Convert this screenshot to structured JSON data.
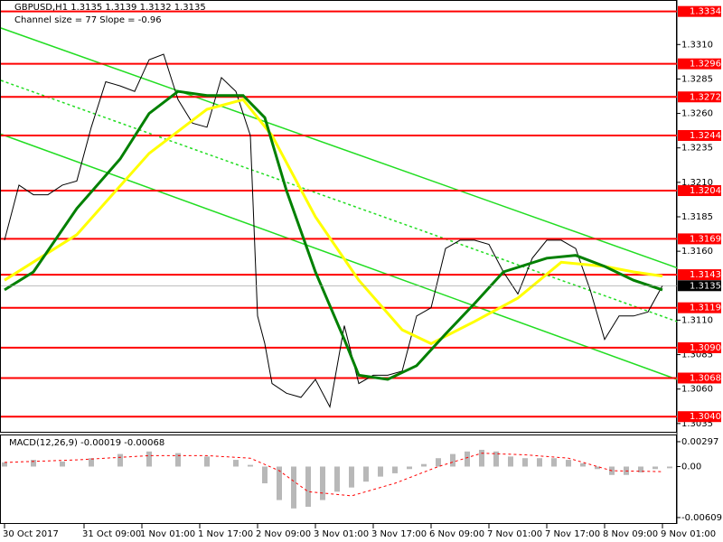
{
  "chart_data": [
    {
      "type": "line",
      "title": "GBPUSD,H1  1.3135 1.3139 1.3132 1.3135",
      "subtitle": "Channel size = 77 Slope = -0.96",
      "xlim": [
        -1,
        186
      ],
      "ylim": [
        1.3029,
        1.3341
      ],
      "yticks": [
        {
          "value": 1.331,
          "label": "1.3310"
        },
        1.3285,
        {
          "value": 1.326,
          "label": "1.3260"
        },
        1.3235,
        {
          "value": 1.321,
          "label": "1.3210"
        },
        1.3185,
        {
          "value": 1.316,
          "label": "1.3160"
        },
        {
          "value": 1.311,
          "label": "1.3110"
        },
        1.3085,
        {
          "value": 1.306,
          "label": "1.3060"
        },
        1.3035
      ],
      "series": [
        {
          "color": "#000000",
          "x": [
            0,
            4,
            8,
            12,
            16,
            20,
            24,
            28,
            32,
            36,
            40,
            44,
            48,
            52,
            56,
            60,
            64,
            68,
            70,
            72,
            74,
            78,
            82,
            86,
            90,
            94,
            98,
            102,
            106,
            110,
            114,
            118,
            122,
            126,
            130,
            134,
            138,
            142,
            146,
            150,
            154,
            158,
            162,
            166,
            170,
            174,
            178,
            182
          ],
          "values": [
            1.3168,
            1.3208,
            1.3201,
            1.3201,
            1.3208,
            1.3211,
            1.325,
            1.3283,
            1.328,
            1.3276,
            1.3299,
            1.3303,
            1.327,
            1.3253,
            1.325,
            1.3286,
            1.3276,
            1.3244,
            1.3113,
            1.3093,
            1.3064,
            1.3057,
            1.3054,
            1.3067,
            1.3047,
            1.3106,
            1.3064,
            1.307,
            1.307,
            1.3073,
            1.3113,
            1.3119,
            1.3162,
            1.3168,
            1.3168,
            1.3165,
            1.3145,
            1.3129,
            1.3155,
            1.3168,
            1.3168,
            1.3162,
            1.3132,
            1.3096,
            1.3113,
            1.3113,
            1.3116,
            1.3135
          ]
        },
        {
          "color": "#ffff00",
          "x": [
            0,
            20,
            40,
            56,
            66,
            74,
            86,
            98,
            110,
            118,
            130,
            142,
            154,
            166,
            174,
            182
          ],
          "values": [
            1.3139,
            1.3172,
            1.3231,
            1.3263,
            1.327,
            1.3244,
            1.3185,
            1.3139,
            1.3103,
            1.3093,
            1.3109,
            1.3126,
            1.3152,
            1.3149,
            1.3145,
            1.3142
          ]
        },
        {
          "color": "#008000",
          "x": [
            0,
            8,
            20,
            32,
            40,
            48,
            56,
            66,
            72,
            78,
            86,
            94,
            98,
            106,
            114,
            122,
            130,
            138,
            150,
            158,
            166,
            174,
            182
          ],
          "values": [
            1.3132,
            1.3145,
            1.3191,
            1.3227,
            1.326,
            1.3276,
            1.3273,
            1.3273,
            1.3257,
            1.3204,
            1.3145,
            1.3096,
            1.307,
            1.3067,
            1.3077,
            1.31,
            1.3122,
            1.3145,
            1.3155,
            1.3157,
            1.3149,
            1.3139,
            1.3132
          ]
        }
      ],
      "trend_lines": [
        {
          "color": "#22dd22",
          "dash": false,
          "x": [
            -1,
            186
          ],
          "values": [
            1.3322,
            1.3148
          ]
        },
        {
          "color": "#22dd22",
          "dash": true,
          "x": [
            -1,
            186
          ],
          "values": [
            1.3284,
            1.3109
          ]
        },
        {
          "color": "#22dd22",
          "dash": false,
          "x": [
            -1,
            186
          ],
          "values": [
            1.3245,
            1.3067
          ]
        }
      ],
      "levels": [
        1.3334,
        1.3296,
        1.3272,
        1.3244,
        1.3204,
        1.3169,
        1.3143,
        1.3119,
        {
          "value": 1.309,
          "label": "1.3090"
        },
        1.3068,
        {
          "value": 1.304,
          "label": "1.3040"
        }
      ],
      "level_color": "#ff0000",
      "current_price": 1.3135
    },
    {
      "type": "bar",
      "title": "MACD(12,26,9) -0.00019 -0.00068",
      "xlim": [
        -1,
        186
      ],
      "xticks": [
        {
          "value": 0,
          "label": "30 Oct 2017"
        },
        {
          "value": 22,
          "label": "31 Oct 09:00"
        },
        {
          "value": 38,
          "label": "1 Nov 01:00"
        },
        {
          "value": 54,
          "label": "1 Nov 17:00"
        },
        {
          "value": 70,
          "label": "2 Nov 09:00"
        },
        {
          "value": 86,
          "label": "3 Nov 01:00"
        },
        {
          "value": 102,
          "label": "3 Nov 17:00"
        },
        {
          "value": 118,
          "label": "6 Nov 09:00"
        },
        {
          "value": 134,
          "label": "7 Nov 01:00"
        },
        {
          "value": 150,
          "label": "7 Nov 17:00"
        },
        {
          "value": 166,
          "label": "8 Nov 09:00"
        },
        {
          "value": 182,
          "label": "9 Nov 01:00"
        }
      ],
      "ylim": [
        -0.00685,
        0.00372
      ],
      "yticks": [
        0.00297,
        {
          "value": 0,
          "label": "0.00"
        },
        -0.00609
      ],
      "color": "#b8b8b8",
      "x": [
        0,
        8,
        16,
        24,
        32,
        40,
        48,
        56,
        64,
        68,
        72,
        76,
        80,
        84,
        88,
        92,
        96,
        100,
        104,
        108,
        112,
        116,
        120,
        124,
        128,
        132,
        136,
        140,
        144,
        148,
        152,
        156,
        160,
        164,
        168,
        172,
        176,
        180,
        184
      ],
      "values": [
        0.0005,
        0.0008,
        0.0006,
        0.001,
        0.0015,
        0.0018,
        0.0016,
        0.0012,
        0.0008,
        0.0002,
        -0.002,
        -0.004,
        -0.005,
        -0.0048,
        -0.004,
        -0.003,
        -0.0025,
        -0.0018,
        -0.0012,
        -0.0008,
        -0.0003,
        0.0003,
        0.001,
        0.0015,
        0.0018,
        0.002,
        0.0018,
        0.0012,
        0.001,
        0.001,
        0.001,
        0.0008,
        0.0004,
        -0.0003,
        -0.001,
        -0.001,
        -0.0007,
        -0.0003,
        -0.0002
      ],
      "signal": {
        "color": "#ff0000",
        "x": [
          0,
          20,
          40,
          56,
          68,
          76,
          84,
          96,
          108,
          120,
          132,
          144,
          156,
          168,
          182
        ],
        "values": [
          0.0005,
          0.0008,
          0.0013,
          0.0013,
          0.001,
          -0.0005,
          -0.003,
          -0.0035,
          -0.002,
          0,
          0.0016,
          0.0014,
          0.001,
          -0.0005,
          -0.0006
        ]
      }
    }
  ]
}
